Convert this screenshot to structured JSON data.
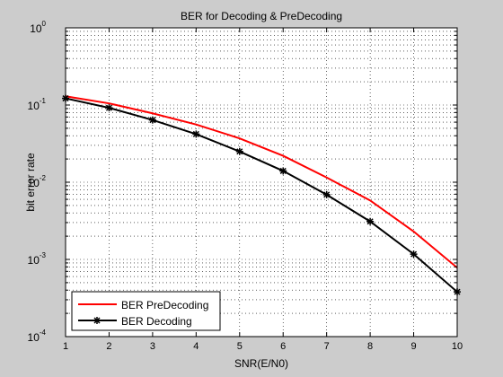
{
  "figure": {
    "background": "#cccccc",
    "axes_background": "#ffffff"
  },
  "chart_data": {
    "type": "line",
    "title": "BER for Decoding & PreDecoding",
    "xlabel": "SNR(E/N0)",
    "ylabel": "bit error rate",
    "x": [
      1,
      2,
      3,
      4,
      5,
      6,
      7,
      8,
      9,
      10
    ],
    "xlim": [
      1,
      10
    ],
    "ylim": [
      0.0001,
      1
    ],
    "yscale": "log",
    "grid": "dotted major and minor",
    "x_tick_labels": [
      "1",
      "2",
      "3",
      "4",
      "5",
      "6",
      "7",
      "8",
      "9",
      "10"
    ],
    "y_ticks": [
      {
        "base": "10",
        "exp": "0"
      },
      {
        "base": "10",
        "exp": "-1"
      },
      {
        "base": "10",
        "exp": "-2"
      },
      {
        "base": "10",
        "exp": "-3"
      },
      {
        "base": "10",
        "exp": "-4"
      }
    ],
    "legend_position": "bottom-left",
    "series": [
      {
        "name": "BER PreDecoding",
        "color": "#ff0000",
        "marker": "none",
        "values": [
          0.13,
          0.105,
          0.078,
          0.056,
          0.037,
          0.022,
          0.0115,
          0.0058,
          0.0023,
          0.00078
        ]
      },
      {
        "name": "BER Decoding",
        "color": "#000000",
        "marker": "star",
        "values": [
          0.122,
          0.092,
          0.064,
          0.042,
          0.025,
          0.014,
          0.0069,
          0.0031,
          0.00117,
          0.00038
        ]
      }
    ]
  }
}
